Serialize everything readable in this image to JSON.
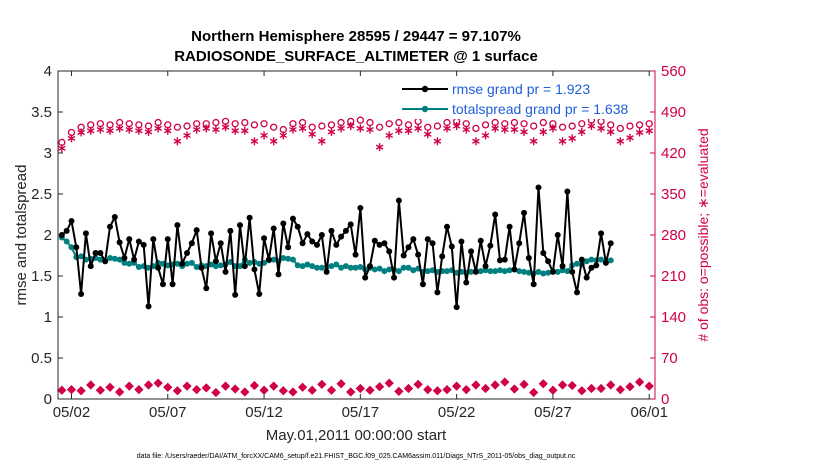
{
  "chart_data": {
    "type": "line",
    "title_line1": "Northern Hemisphere 28595 / 29447 = 97.107%",
    "title_line2": "RADIOSONDE_SURFACE_ALTIMETER @ 1 surface",
    "xlabel": "May.01,2011 00:00:00 start",
    "ylabel_left": "rmse and totalspread",
    "ylabel_right": "# of obs: o=possible; ∗=evaluated",
    "footnote": "data file: /Users/raeder/DAI/ATM_forcXX/CAM6_setup/f.e21.FHIST_BGC.f09_025.CAM6assim.011/Diags_NTrS_2011-05/obs_diag_output.nc",
    "x_ticks": [
      "05/02",
      "05/07",
      "05/12",
      "05/17",
      "05/22",
      "05/27",
      "06/01"
    ],
    "x_tick_days": [
      1,
      6,
      11,
      16,
      21,
      26,
      31
    ],
    "xlim": [
      0.3,
      31.3
    ],
    "y_left_ticks": [
      "0",
      "0.5",
      "1",
      "1.5",
      "2",
      "2.5",
      "3",
      "3.5",
      "4"
    ],
    "ylim_left": [
      0,
      4
    ],
    "y_right_ticks": [
      "0",
      "70",
      "140",
      "210",
      "280",
      "350",
      "420",
      "490",
      "560"
    ],
    "ylim_right": [
      0,
      560
    ],
    "colors": {
      "rmse": "#000000",
      "spread": "#008080",
      "obs": "#d0004a",
      "legend_text": "#1f5fd8"
    },
    "series": [
      {
        "name": "rmse grand pr = 1.923",
        "key": "rmse",
        "start_day": 0.5,
        "step": 0.25,
        "values": [
          2.0,
          2.05,
          2.17,
          1.85,
          1.28,
          2.02,
          1.62,
          1.78,
          1.78,
          1.68,
          2.1,
          2.22,
          1.91,
          1.72,
          1.95,
          1.7,
          1.92,
          1.88,
          1.13,
          1.95,
          1.6,
          1.4,
          1.95,
          1.4,
          2.12,
          1.65,
          1.78,
          1.9,
          2.06,
          1.6,
          1.35,
          2.02,
          1.68,
          1.9,
          1.55,
          2.05,
          1.27,
          2.12,
          1.62,
          2.21,
          1.58,
          1.28,
          1.96,
          1.7,
          2.08,
          1.52,
          2.14,
          1.85,
          2.2,
          2.1,
          1.9,
          2.01,
          1.92,
          1.88,
          2.0,
          1.55,
          2.05,
          1.88,
          1.98,
          2.05,
          2.13,
          1.76,
          2.33,
          1.48,
          1.62,
          1.93,
          1.88,
          1.9,
          1.8,
          1.48,
          2.42,
          1.75,
          1.85,
          1.95,
          1.76,
          1.4,
          1.95,
          1.9,
          1.3,
          1.74,
          2.1,
          1.86,
          1.12,
          1.92,
          1.42,
          1.8,
          1.55,
          1.93,
          1.62,
          1.87,
          2.25,
          1.69,
          1.7,
          2.1,
          1.58,
          1.9,
          2.27,
          1.72,
          1.4,
          2.58,
          1.78,
          1.68,
          1.55,
          2.0,
          1.62,
          2.53,
          1.55,
          1.3,
          1.7,
          1.48,
          1.6,
          1.63,
          2.02,
          1.66,
          1.9
        ]
      },
      {
        "name": "totalspread grand pr = 1.638",
        "key": "spread",
        "start_day": 0.5,
        "step": 0.25,
        "values": [
          1.97,
          1.92,
          1.85,
          1.73,
          1.74,
          1.7,
          1.71,
          1.72,
          1.7,
          1.68,
          1.72,
          1.71,
          1.7,
          1.66,
          1.65,
          1.66,
          1.61,
          1.62,
          1.6,
          1.62,
          1.66,
          1.65,
          1.63,
          1.64,
          1.65,
          1.62,
          1.65,
          1.66,
          1.61,
          1.63,
          1.62,
          1.64,
          1.62,
          1.63,
          1.64,
          1.67,
          1.62,
          1.62,
          1.7,
          1.66,
          1.67,
          1.65,
          1.66,
          1.69,
          1.7,
          1.68,
          1.72,
          1.71,
          1.7,
          1.63,
          1.62,
          1.64,
          1.62,
          1.6,
          1.6,
          1.61,
          1.62,
          1.64,
          1.6,
          1.62,
          1.6,
          1.6,
          1.61,
          1.58,
          1.6,
          1.58,
          1.59,
          1.56,
          1.58,
          1.58,
          1.56,
          1.6,
          1.6,
          1.57,
          1.59,
          1.55,
          1.56,
          1.57,
          1.55,
          1.56,
          1.56,
          1.57,
          1.54,
          1.55,
          1.54,
          1.55,
          1.56,
          1.56,
          1.57,
          1.56,
          1.56,
          1.57,
          1.56,
          1.57,
          1.58,
          1.56,
          1.55,
          1.54,
          1.53,
          1.55,
          1.53,
          1.54,
          1.56,
          1.55,
          1.57,
          1.56,
          1.63,
          1.65,
          1.64,
          1.68,
          1.7,
          1.69,
          1.7,
          1.68,
          1.69
        ]
      }
    ],
    "obs_series": [
      {
        "name": "possible",
        "marker": "circle",
        "start_day": 0.5,
        "step": 0.5,
        "values": [
          438,
          455,
          464,
          468,
          470,
          468,
          472,
          470,
          468,
          466,
          472,
          468,
          464,
          466,
          470,
          470,
          472,
          474,
          470,
          472,
          468,
          470,
          464,
          460,
          470,
          472,
          464,
          466,
          468,
          472,
          474,
          476,
          472,
          464,
          470,
          472,
          468,
          474,
          464,
          466,
          472,
          474,
          470,
          462,
          468,
          472,
          470,
          472,
          470,
          466,
          472,
          470,
          464,
          466,
          470,
          476,
          474,
          468,
          462,
          466,
          468,
          470
        ]
      },
      {
        "name": "evaluated",
        "marker": "asterisk",
        "start_day": 0.5,
        "step": 0.5,
        "values": [
          428,
          445,
          455,
          458,
          460,
          458,
          462,
          460,
          458,
          456,
          462,
          458,
          440,
          450,
          460,
          462,
          460,
          464,
          458,
          458,
          440,
          450,
          440,
          450,
          460,
          462,
          452,
          440,
          456,
          462,
          466,
          462,
          460,
          430,
          450,
          458,
          458,
          462,
          452,
          440,
          462,
          466,
          460,
          440,
          450,
          462,
          460,
          460,
          456,
          440,
          456,
          462,
          440,
          445,
          456,
          466,
          462,
          456,
          440,
          446,
          455,
          458
        ]
      },
      {
        "name": "bottom",
        "marker": "diamond",
        "start_day": 0.5,
        "step": 0.5,
        "values": [
          15,
          16,
          14,
          24,
          15,
          20,
          12,
          22,
          16,
          24,
          27,
          20,
          14,
          22,
          16,
          19,
          11,
          22,
          17,
          12,
          23,
          15,
          22,
          14,
          12,
          20,
          15,
          25,
          15,
          26,
          12,
          18,
          15,
          21,
          27,
          13,
          18,
          25,
          16,
          14,
          16,
          22,
          16,
          24,
          18,
          24,
          29,
          17,
          25,
          11,
          26,
          15,
          24,
          23,
          14,
          18,
          18,
          24,
          16,
          21,
          29,
          22
        ]
      }
    ]
  }
}
